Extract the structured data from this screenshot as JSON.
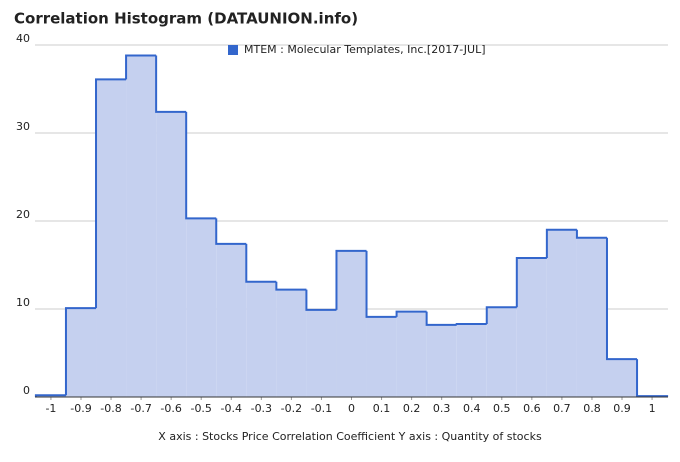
{
  "chart_data": {
    "type": "histogram",
    "title": "Correlation Histogram (DATAUNION.info)",
    "x_label": "X axis : Stocks Price Correlation Coefficient  Y axis : Quantity of stocks",
    "bins": [
      -1.05,
      -0.95,
      -0.85,
      -0.75,
      -0.65,
      -0.55,
      -0.45,
      -0.35,
      -0.25,
      -0.15,
      -0.05,
      0.05,
      0.15,
      0.25,
      0.35,
      0.45,
      0.55,
      0.65,
      0.75,
      0.85,
      0.95,
      1.05
    ],
    "series": [
      {
        "name": "MTEM : Molecular Templates, Inc.[2017-JUL]",
        "color": "#3366cc",
        "fill": "#c5d0ef",
        "values": [
          0.2,
          10.1,
          36.1,
          38.8,
          32.4,
          20.3,
          17.4,
          13.1,
          12.2,
          9.9,
          16.6,
          9.1,
          9.7,
          8.2,
          8.3,
          10.2,
          15.8,
          19.0,
          18.1,
          4.3,
          0.1
        ]
      }
    ],
    "xlim": [
      -1.053,
      1.053
    ],
    "ylim": [
      0,
      40
    ],
    "xticks": [
      -1,
      -0.9,
      -0.8,
      -0.7,
      -0.6,
      -0.5,
      -0.4,
      -0.3,
      -0.2,
      -0.1,
      0,
      0.1,
      0.2,
      0.3,
      0.4,
      0.5,
      0.6,
      0.7,
      0.8,
      0.9,
      1
    ],
    "yticks": [
      0,
      10,
      20,
      30,
      40
    ],
    "grid": true,
    "legend": "top"
  }
}
